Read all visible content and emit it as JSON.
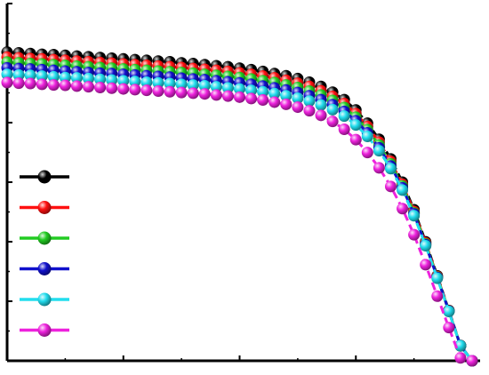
{
  "chart_data": {
    "type": "line",
    "title": "",
    "xlabel": "",
    "ylabel": "",
    "xlim": [
      0,
      1
    ],
    "ylim": [
      0,
      1
    ],
    "grid": false,
    "legend_placement": "left",
    "x": [
      0.0,
      0.025,
      0.05,
      0.075,
      0.1,
      0.125,
      0.15,
      0.175,
      0.2,
      0.225,
      0.25,
      0.275,
      0.3,
      0.325,
      0.35,
      0.375,
      0.4,
      0.425,
      0.45,
      0.475,
      0.5,
      0.525,
      0.55,
      0.575,
      0.6,
      0.625,
      0.65,
      0.675,
      0.7,
      0.725,
      0.75,
      0.775,
      0.8,
      0.825,
      0.85,
      0.875,
      0.9,
      0.925,
      0.95,
      0.975,
      1.0
    ],
    "series": [
      {
        "color": "#000000",
        "values": [
          0.864,
          0.862,
          0.86,
          0.858,
          0.857,
          0.855,
          0.853,
          0.851,
          0.849,
          0.847,
          0.845,
          0.843,
          0.841,
          0.839,
          0.837,
          0.834,
          0.832,
          0.829,
          0.826,
          0.823,
          0.819,
          0.815,
          0.81,
          0.804,
          0.798,
          0.79,
          0.78,
          0.768,
          0.752,
          0.731,
          0.702,
          0.665,
          0.62,
          0.565,
          0.5,
          0.423,
          0.333,
          0.238,
          0.141,
          0.043,
          0.0
        ]
      },
      {
        "color": "#ff1010",
        "values": [
          0.85,
          0.848,
          0.846,
          0.845,
          0.843,
          0.841,
          0.839,
          0.837,
          0.835,
          0.833,
          0.831,
          0.829,
          0.827,
          0.825,
          0.823,
          0.821,
          0.818,
          0.816,
          0.813,
          0.81,
          0.806,
          0.802,
          0.797,
          0.792,
          0.785,
          0.777,
          0.768,
          0.756,
          0.74,
          0.72,
          0.692,
          0.656,
          0.612,
          0.558,
          0.494,
          0.418,
          0.33,
          0.236,
          0.14,
          0.042,
          0.0
        ]
      },
      {
        "color": "#22cc22",
        "values": [
          0.836,
          0.834,
          0.832,
          0.831,
          0.829,
          0.827,
          0.825,
          0.823,
          0.821,
          0.819,
          0.817,
          0.815,
          0.813,
          0.811,
          0.809,
          0.807,
          0.805,
          0.802,
          0.799,
          0.796,
          0.793,
          0.789,
          0.784,
          0.779,
          0.772,
          0.765,
          0.755,
          0.744,
          0.729,
          0.709,
          0.682,
          0.647,
          0.604,
          0.551,
          0.489,
          0.414,
          0.327,
          0.234,
          0.139,
          0.042,
          0.0
        ]
      },
      {
        "color": "#1010cc",
        "values": [
          0.82,
          0.818,
          0.817,
          0.815,
          0.813,
          0.811,
          0.809,
          0.807,
          0.805,
          0.804,
          0.802,
          0.8,
          0.798,
          0.796,
          0.794,
          0.791,
          0.789,
          0.787,
          0.784,
          0.781,
          0.778,
          0.774,
          0.769,
          0.764,
          0.758,
          0.751,
          0.742,
          0.731,
          0.717,
          0.698,
          0.672,
          0.638,
          0.596,
          0.545,
          0.484,
          0.411,
          0.325,
          0.233,
          0.139,
          0.042,
          0.0
        ]
      },
      {
        "color": "#22ddee",
        "values": [
          0.802,
          0.8,
          0.799,
          0.797,
          0.795,
          0.793,
          0.792,
          0.79,
          0.788,
          0.786,
          0.784,
          0.782,
          0.78,
          0.778,
          0.776,
          0.774,
          0.772,
          0.77,
          0.767,
          0.764,
          0.761,
          0.757,
          0.753,
          0.748,
          0.742,
          0.735,
          0.727,
          0.716,
          0.703,
          0.685,
          0.66,
          0.628,
          0.588,
          0.538,
          0.478,
          0.406,
          0.322,
          0.231,
          0.138,
          0.042,
          0.0
        ]
      },
      {
        "color": "#ee22dd",
        "values": [
          0.779,
          0.777,
          0.776,
          0.774,
          0.772,
          0.771,
          0.769,
          0.767,
          0.765,
          0.763,
          0.761,
          0.759,
          0.757,
          0.755,
          0.753,
          0.751,
          0.749,
          0.747,
          0.744,
          0.741,
          0.738,
          0.734,
          0.73,
          0.724,
          0.718,
          0.71,
          0.7,
          0.687,
          0.67,
          0.648,
          0.619,
          0.583,
          0.54,
          0.488,
          0.426,
          0.353,
          0.269,
          0.181,
          0.093,
          0.008,
          0.0
        ]
      }
    ]
  }
}
